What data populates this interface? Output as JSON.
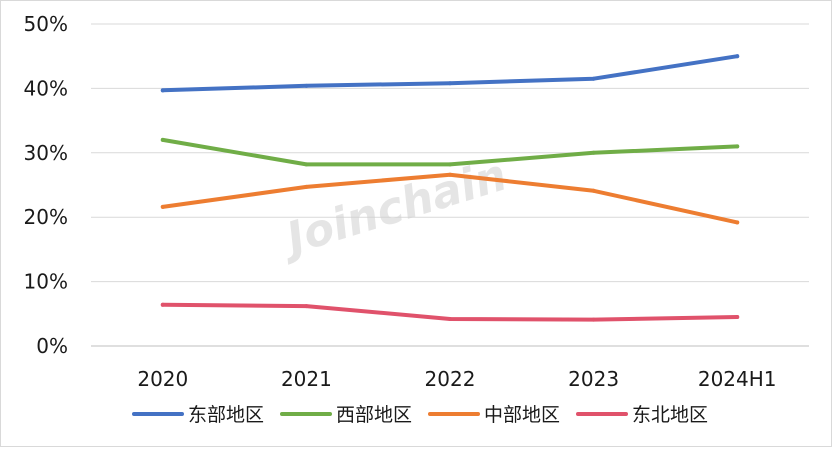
{
  "chart_data": {
    "type": "line",
    "title": "",
    "xlabel": "",
    "ylabel": "",
    "categories": [
      "2020",
      "2021",
      "2022",
      "2023",
      "2024H1"
    ],
    "ylim": [
      0,
      50
    ],
    "y_ticks": [
      0,
      10,
      20,
      30,
      40,
      50
    ],
    "y_tick_labels": [
      "0%",
      "10%",
      "20%",
      "30%",
      "40%",
      "50%"
    ],
    "grid": true,
    "legend_position": "bottom",
    "watermark": "Joinchain",
    "series": [
      {
        "name": "东部地区",
        "color": "#4472C4",
        "values": [
          39.7,
          40.4,
          40.8,
          41.5,
          45.0
        ]
      },
      {
        "name": "西部地区",
        "color": "#70AD47",
        "values": [
          32.0,
          28.2,
          28.2,
          30.0,
          31.0
        ]
      },
      {
        "name": "中部地区",
        "color": "#ED7D31",
        "values": [
          21.6,
          24.7,
          26.6,
          24.1,
          19.2
        ]
      },
      {
        "name": "东北地区",
        "color": "#E0526B",
        "values": [
          6.4,
          6.2,
          4.2,
          4.1,
          4.5
        ]
      }
    ]
  }
}
